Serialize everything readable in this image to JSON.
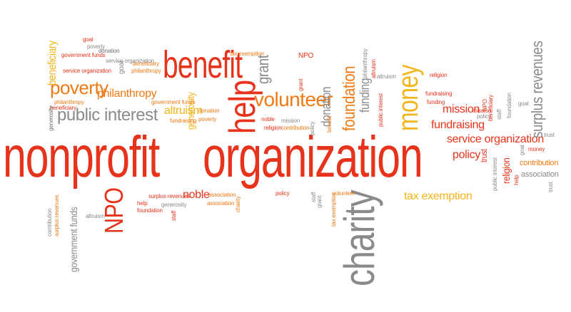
{
  "palette": {
    "red": "#e8331c",
    "orange": "#f07a15",
    "gold": "#f2b51a",
    "gray": "#8a8a8a",
    "darkgray": "#6e6e6e",
    "lightgray": "#a6a6a6"
  },
  "words": {
    "nonprofit": "nonprofit",
    "organization": "organization",
    "benefit": "benefit",
    "help": "help",
    "volunteer": "volunteer",
    "money": "money",
    "charity": "charity",
    "public_interest": "public interest",
    "poverty": "poverty",
    "philanthropy": "philanthropy",
    "altruism": "altruism",
    "grant": "grant",
    "foundation": "foundation",
    "donation": "donation",
    "funding": "funding",
    "mission": "mission",
    "fundraising": "fundraising",
    "service_organization": "service organization",
    "policy": "policy",
    "trust": "trust",
    "religion": "religion",
    "association": "association",
    "tax_exemption": "tax exemption",
    "surplus_revenues": "surplus revenues",
    "contribution": "contribution",
    "npo": "NPO",
    "noble": "noble",
    "generosity": "generosity",
    "beneficiary": "beneficiary",
    "government_funds": "government funds",
    "goal": "goal",
    "staff": "staff"
  }
}
